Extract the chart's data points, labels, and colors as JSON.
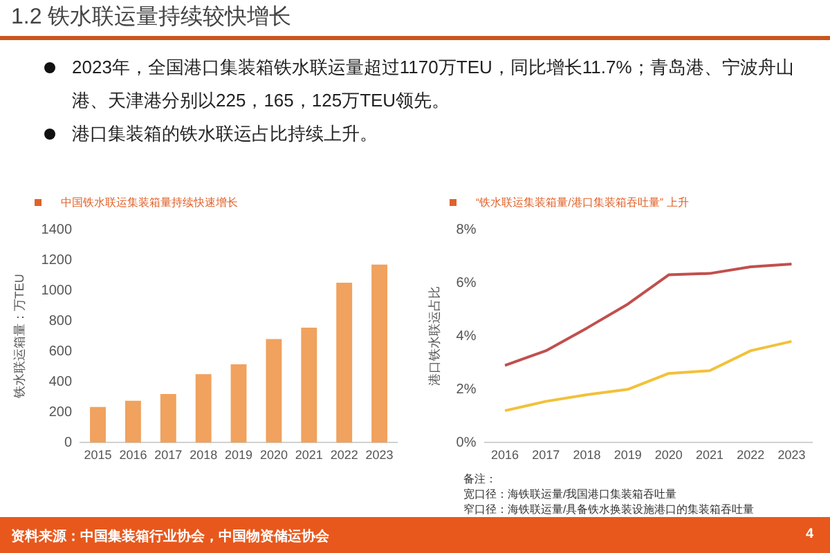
{
  "chart_data": [
    {
      "type": "other",
      "title": "1.2 铁水联运量持续较快增长",
      "annotations": [
        "2023年，全国港口集装箱铁水联运量超过1170万TEU，同比增长11.7%；青岛港、宁波舟山港、天津港分别以225，165，125万TEU领先。",
        "港口集装箱的铁水联运占比持续上升。"
      ]
    },
    {
      "type": "bar",
      "title": "中国铁水联运集装箱量持续快速增长",
      "ylabel": "铁水联运箱量：万TEU",
      "categories": [
        "2015",
        "2016",
        "2017",
        "2018",
        "2019",
        "2020",
        "2021",
        "2022",
        "2023"
      ],
      "values": [
        235,
        275,
        320,
        450,
        515,
        680,
        755,
        1050,
        1170
      ],
      "color": "#f0a25e",
      "ylim": [
        0,
        1400
      ],
      "yticks": [
        0,
        200,
        400,
        600,
        800,
        1000,
        1200,
        1400
      ],
      "grid": false,
      "legend": false
    },
    {
      "type": "line",
      "title": "“铁水联运集装箱量/港口集装箱吞吐量” 上升",
      "ylabel": "港口铁水联运占比",
      "categories": [
        "2016",
        "2017",
        "2018",
        "2019",
        "2020",
        "2021",
        "2022",
        "2023"
      ],
      "series": [
        {
          "color": "#c0504d",
          "values": [
            2.9,
            3.45,
            4.3,
            5.2,
            6.3,
            6.35,
            6.6,
            6.7
          ]
        },
        {
          "color": "#f2c13a",
          "values": [
            1.2,
            1.55,
            1.8,
            2.0,
            2.6,
            2.7,
            3.45,
            3.8
          ]
        }
      ],
      "ylim": [
        0,
        8
      ],
      "yticks": [
        {
          "value": 0,
          "label": "0%"
        },
        {
          "value": 2,
          "label": "2%"
        },
        {
          "value": 4,
          "label": "4%"
        },
        {
          "value": 6,
          "label": "6%"
        },
        {
          "value": 8,
          "label": "8%"
        }
      ],
      "grid": false,
      "legend": false,
      "marker": "none",
      "line_style": "solid",
      "annotations": [
        "备注：",
        "宽口径：海铁联运量/我国港口集装箱吞吐量",
        "窄口径：海铁联运量/具备铁水换装设施港口的集装箱吞吐量"
      ]
    },
    {
      "type": "other",
      "annotations": [
        "资料来源：中国集装箱行业协会，中国物资储运协会",
        "4"
      ]
    }
  ]
}
